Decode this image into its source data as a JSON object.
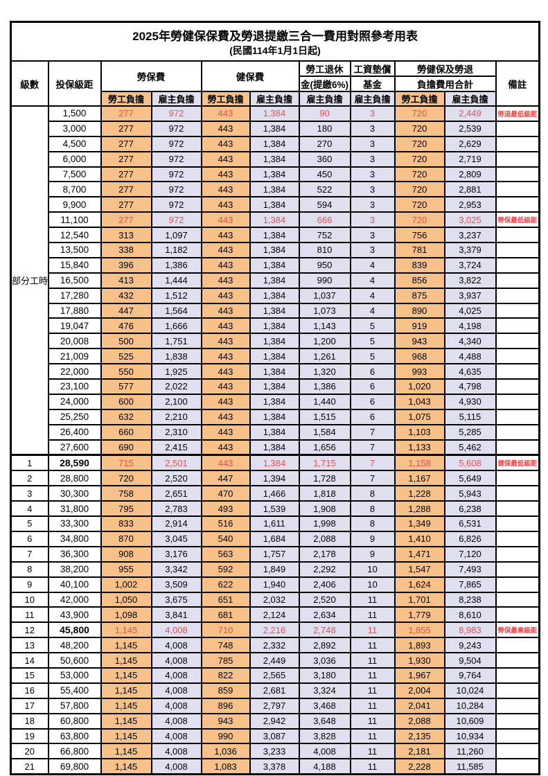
{
  "title": "2025年勞健保保費及勞退提繳三合一費用對照參考用表",
  "subtitle": "(民國114年1月1日起)",
  "colors": {
    "employee_bg": "#F7C189",
    "employer_bg": "#E0DFF0",
    "highlight_text": "#EE4D4D",
    "remark_text": "#FF4040"
  },
  "header": {
    "level": "級數",
    "bracket": "投保級距",
    "labor_fee": "勞保費",
    "health_fee": "健保費",
    "pension_line1": "勞工退休",
    "pension_line2": "金(提繳6%)",
    "wage_fund_line1": "工資墊償",
    "wage_fund_line2": "基金",
    "total_line1": "勞健保及勞退",
    "total_line2": "負擔費用合計",
    "remark": "備註",
    "employee_share": "勞工負擔",
    "employer_share": "雇主負擔"
  },
  "rows": [
    {
      "level": "部分工時",
      "level_span": 23,
      "bracket": "1,500",
      "values": [
        "277",
        "972",
        "443",
        "1,384",
        "90",
        "3",
        "720",
        "2,449"
      ],
      "red": true,
      "remark": "勞退最低級距"
    },
    {
      "bracket": "3,000",
      "values": [
        "277",
        "972",
        "443",
        "1,384",
        "180",
        "3",
        "720",
        "2,539"
      ]
    },
    {
      "bracket": "4,500",
      "values": [
        "277",
        "972",
        "443",
        "1,384",
        "270",
        "3",
        "720",
        "2,629"
      ]
    },
    {
      "bracket": "6,000",
      "values": [
        "277",
        "972",
        "443",
        "1,384",
        "360",
        "3",
        "720",
        "2,719"
      ]
    },
    {
      "bracket": "7,500",
      "values": [
        "277",
        "972",
        "443",
        "1,384",
        "450",
        "3",
        "720",
        "2,809"
      ]
    },
    {
      "bracket": "8,700",
      "values": [
        "277",
        "972",
        "443",
        "1,384",
        "522",
        "3",
        "720",
        "2,881"
      ]
    },
    {
      "bracket": "9,900",
      "values": [
        "277",
        "972",
        "443",
        "1,384",
        "594",
        "3",
        "720",
        "2,953"
      ]
    },
    {
      "bracket": "11,100",
      "values": [
        "277",
        "972",
        "443",
        "1,384",
        "666",
        "3",
        "720",
        "3,025"
      ],
      "red": true,
      "remark": "勞保最低級距"
    },
    {
      "bracket": "12,540",
      "values": [
        "313",
        "1,097",
        "443",
        "1,384",
        "752",
        "3",
        "756",
        "3,237"
      ]
    },
    {
      "bracket": "13,500",
      "values": [
        "338",
        "1,182",
        "443",
        "1,384",
        "810",
        "3",
        "781",
        "3,379"
      ]
    },
    {
      "bracket": "15,840",
      "values": [
        "396",
        "1,386",
        "443",
        "1,384",
        "950",
        "4",
        "839",
        "3,724"
      ]
    },
    {
      "bracket": "16,500",
      "values": [
        "413",
        "1,444",
        "443",
        "1,384",
        "990",
        "4",
        "856",
        "3,822"
      ]
    },
    {
      "bracket": "17,280",
      "values": [
        "432",
        "1,512",
        "443",
        "1,384",
        "1,037",
        "4",
        "875",
        "3,937"
      ]
    },
    {
      "bracket": "17,880",
      "values": [
        "447",
        "1,564",
        "443",
        "1,384",
        "1,073",
        "4",
        "890",
        "4,025"
      ]
    },
    {
      "bracket": "19,047",
      "values": [
        "476",
        "1,666",
        "443",
        "1,384",
        "1,143",
        "5",
        "919",
        "4,198"
      ]
    },
    {
      "bracket": "20,008",
      "values": [
        "500",
        "1,751",
        "443",
        "1,384",
        "1,200",
        "5",
        "943",
        "4,340"
      ]
    },
    {
      "bracket": "21,009",
      "values": [
        "525",
        "1,838",
        "443",
        "1,384",
        "1,261",
        "5",
        "968",
        "4,488"
      ]
    },
    {
      "bracket": "22,000",
      "values": [
        "550",
        "1,925",
        "443",
        "1,384",
        "1,320",
        "6",
        "993",
        "4,635"
      ]
    },
    {
      "bracket": "23,100",
      "values": [
        "577",
        "2,022",
        "443",
        "1,384",
        "1,386",
        "6",
        "1,020",
        "4,798"
      ]
    },
    {
      "bracket": "24,000",
      "values": [
        "600",
        "2,100",
        "443",
        "1,384",
        "1,440",
        "6",
        "1,043",
        "4,930"
      ]
    },
    {
      "bracket": "25,250",
      "values": [
        "632",
        "2,210",
        "443",
        "1,384",
        "1,515",
        "6",
        "1,075",
        "5,115"
      ]
    },
    {
      "bracket": "26,400",
      "values": [
        "660",
        "2,310",
        "443",
        "1,384",
        "1,584",
        "7",
        "1,103",
        "5,285"
      ]
    },
    {
      "bracket": "27,600",
      "values": [
        "690",
        "2,415",
        "443",
        "1,384",
        "1,656",
        "7",
        "1,133",
        "5,462"
      ]
    },
    {
      "level": "1",
      "bracket": "28,590",
      "values": [
        "715",
        "2,501",
        "443",
        "1,384",
        "1,715",
        "7",
        "1,158",
        "5,608"
      ],
      "red": true,
      "remark": "健保最低級距",
      "bold_bracket": true,
      "thick_top": true
    },
    {
      "level": "2",
      "bracket": "28,800",
      "values": [
        "720",
        "2,520",
        "447",
        "1,394",
        "1,728",
        "7",
        "1,167",
        "5,649"
      ]
    },
    {
      "level": "3",
      "bracket": "30,300",
      "values": [
        "758",
        "2,651",
        "470",
        "1,466",
        "1,818",
        "8",
        "1,228",
        "5,943"
      ]
    },
    {
      "level": "4",
      "bracket": "31,800",
      "values": [
        "795",
        "2,783",
        "493",
        "1,539",
        "1,908",
        "8",
        "1,288",
        "6,238"
      ]
    },
    {
      "level": "5",
      "bracket": "33,300",
      "values": [
        "833",
        "2,914",
        "516",
        "1,611",
        "1,998",
        "8",
        "1,349",
        "6,531"
      ]
    },
    {
      "level": "6",
      "bracket": "34,800",
      "values": [
        "870",
        "3,045",
        "540",
        "1,684",
        "2,088",
        "9",
        "1,410",
        "6,826"
      ]
    },
    {
      "level": "7",
      "bracket": "36,300",
      "values": [
        "908",
        "3,176",
        "563",
        "1,757",
        "2,178",
        "9",
        "1,471",
        "7,120"
      ]
    },
    {
      "level": "8",
      "bracket": "38,200",
      "values": [
        "955",
        "3,342",
        "592",
        "1,849",
        "2,292",
        "10",
        "1,547",
        "7,493"
      ]
    },
    {
      "level": "9",
      "bracket": "40,100",
      "values": [
        "1,002",
        "3,509",
        "622",
        "1,940",
        "2,406",
        "10",
        "1,624",
        "7,865"
      ]
    },
    {
      "level": "10",
      "bracket": "42,000",
      "values": [
        "1,050",
        "3,675",
        "651",
        "2,032",
        "2,520",
        "11",
        "1,701",
        "8,238"
      ]
    },
    {
      "level": "11",
      "bracket": "43,900",
      "values": [
        "1,098",
        "3,841",
        "681",
        "2,124",
        "2,634",
        "11",
        "1,779",
        "8,610"
      ]
    },
    {
      "level": "12",
      "bracket": "45,800",
      "values": [
        "1,145",
        "4,008",
        "710",
        "2,216",
        "2,748",
        "11",
        "1,855",
        "8,983"
      ],
      "red": true,
      "remark": "勞保最高級距",
      "bold_bracket": true
    },
    {
      "level": "13",
      "bracket": "48,200",
      "values": [
        "1,145",
        "4,008",
        "748",
        "2,332",
        "2,892",
        "11",
        "1,893",
        "9,243"
      ]
    },
    {
      "level": "14",
      "bracket": "50,600",
      "values": [
        "1,145",
        "4,008",
        "785",
        "2,449",
        "3,036",
        "11",
        "1,930",
        "9,504"
      ]
    },
    {
      "level": "15",
      "bracket": "53,000",
      "values": [
        "1,145",
        "4,008",
        "822",
        "2,565",
        "3,180",
        "11",
        "1,967",
        "9,764"
      ]
    },
    {
      "level": "16",
      "bracket": "55,400",
      "values": [
        "1,145",
        "4,008",
        "859",
        "2,681",
        "3,324",
        "11",
        "2,004",
        "10,024"
      ]
    },
    {
      "level": "17",
      "bracket": "57,800",
      "values": [
        "1,145",
        "4,008",
        "896",
        "2,797",
        "3,468",
        "11",
        "2,041",
        "10,284"
      ]
    },
    {
      "level": "18",
      "bracket": "60,800",
      "values": [
        "1,145",
        "4,008",
        "943",
        "2,942",
        "3,648",
        "11",
        "2,088",
        "10,609"
      ]
    },
    {
      "level": "19",
      "bracket": "63,800",
      "values": [
        "1,145",
        "4,008",
        "990",
        "3,087",
        "3,828",
        "11",
        "2,135",
        "10,934"
      ]
    },
    {
      "level": "20",
      "bracket": "66,800",
      "values": [
        "1,145",
        "4,008",
        "1,036",
        "3,233",
        "4,008",
        "11",
        "2,181",
        "11,260"
      ]
    },
    {
      "level": "21",
      "bracket": "69,800",
      "values": [
        "1,145",
        "4,008",
        "1,083",
        "3,378",
        "4,188",
        "11",
        "2,228",
        "11,585"
      ]
    }
  ]
}
